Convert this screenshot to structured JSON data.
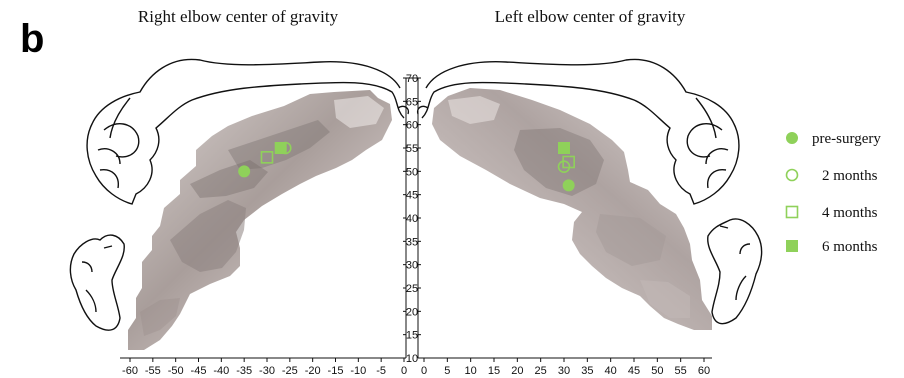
{
  "figure": {
    "panel_letter": "b",
    "colors": {
      "marker": "#8fd15a",
      "map_light": "#dbd4d2",
      "map_mid": "#b6abaa",
      "map_dark": "#8a807d",
      "ink": "#111111"
    }
  },
  "chart_data": {
    "type": "scatter",
    "subplots": [
      {
        "title": "Right elbow center of gravity",
        "x_ticks": [
          "-60",
          "-55",
          "-50",
          "-45",
          "-40",
          "-35",
          "-30",
          "-25",
          "-20",
          "-15",
          "-10",
          "-5",
          "0"
        ],
        "xlim": [
          -60,
          0
        ],
        "ylim": [
          10,
          70
        ],
        "series": [
          {
            "name": "pre-surgery",
            "marker": "filled-circle",
            "points": [
              [
                -35,
                50
              ]
            ]
          },
          {
            "name": "2 months",
            "marker": "open-circle",
            "points": [
              [
                -26,
                55
              ]
            ]
          },
          {
            "name": "4 months",
            "marker": "open-square",
            "points": [
              [
                -30,
                53
              ]
            ]
          },
          {
            "name": "6 months",
            "marker": "filled-square",
            "points": [
              [
                -27,
                55
              ]
            ]
          }
        ]
      },
      {
        "title": "Left elbow center of gravity",
        "x_ticks": [
          "0",
          "5",
          "10",
          "15",
          "20",
          "25",
          "30",
          "35",
          "40",
          "45",
          "50",
          "55",
          "60"
        ],
        "xlim": [
          0,
          60
        ],
        "ylim": [
          10,
          70
        ],
        "series": [
          {
            "name": "pre-surgery",
            "marker": "filled-circle",
            "points": [
              [
                31,
                47
              ]
            ]
          },
          {
            "name": "2 months",
            "marker": "open-circle",
            "points": [
              [
                30,
                51
              ]
            ]
          },
          {
            "name": "4 months",
            "marker": "open-square",
            "points": [
              [
                31,
                52
              ]
            ]
          },
          {
            "name": "6 months",
            "marker": "filled-square",
            "points": [
              [
                30,
                55
              ]
            ]
          }
        ]
      }
    ],
    "y_ticks": [
      "10",
      "15",
      "20",
      "25",
      "30",
      "35",
      "40",
      "45",
      "50",
      "55",
      "60",
      "65",
      "70"
    ],
    "legend": {
      "placement": "right",
      "entries": [
        {
          "label": "pre-surgery",
          "marker": "filled-circle"
        },
        {
          "label": "2 months",
          "marker": "open-circle"
        },
        {
          "label": "4 months",
          "marker": "open-square"
        },
        {
          "label": "6 months",
          "marker": "filled-square"
        }
      ]
    }
  }
}
